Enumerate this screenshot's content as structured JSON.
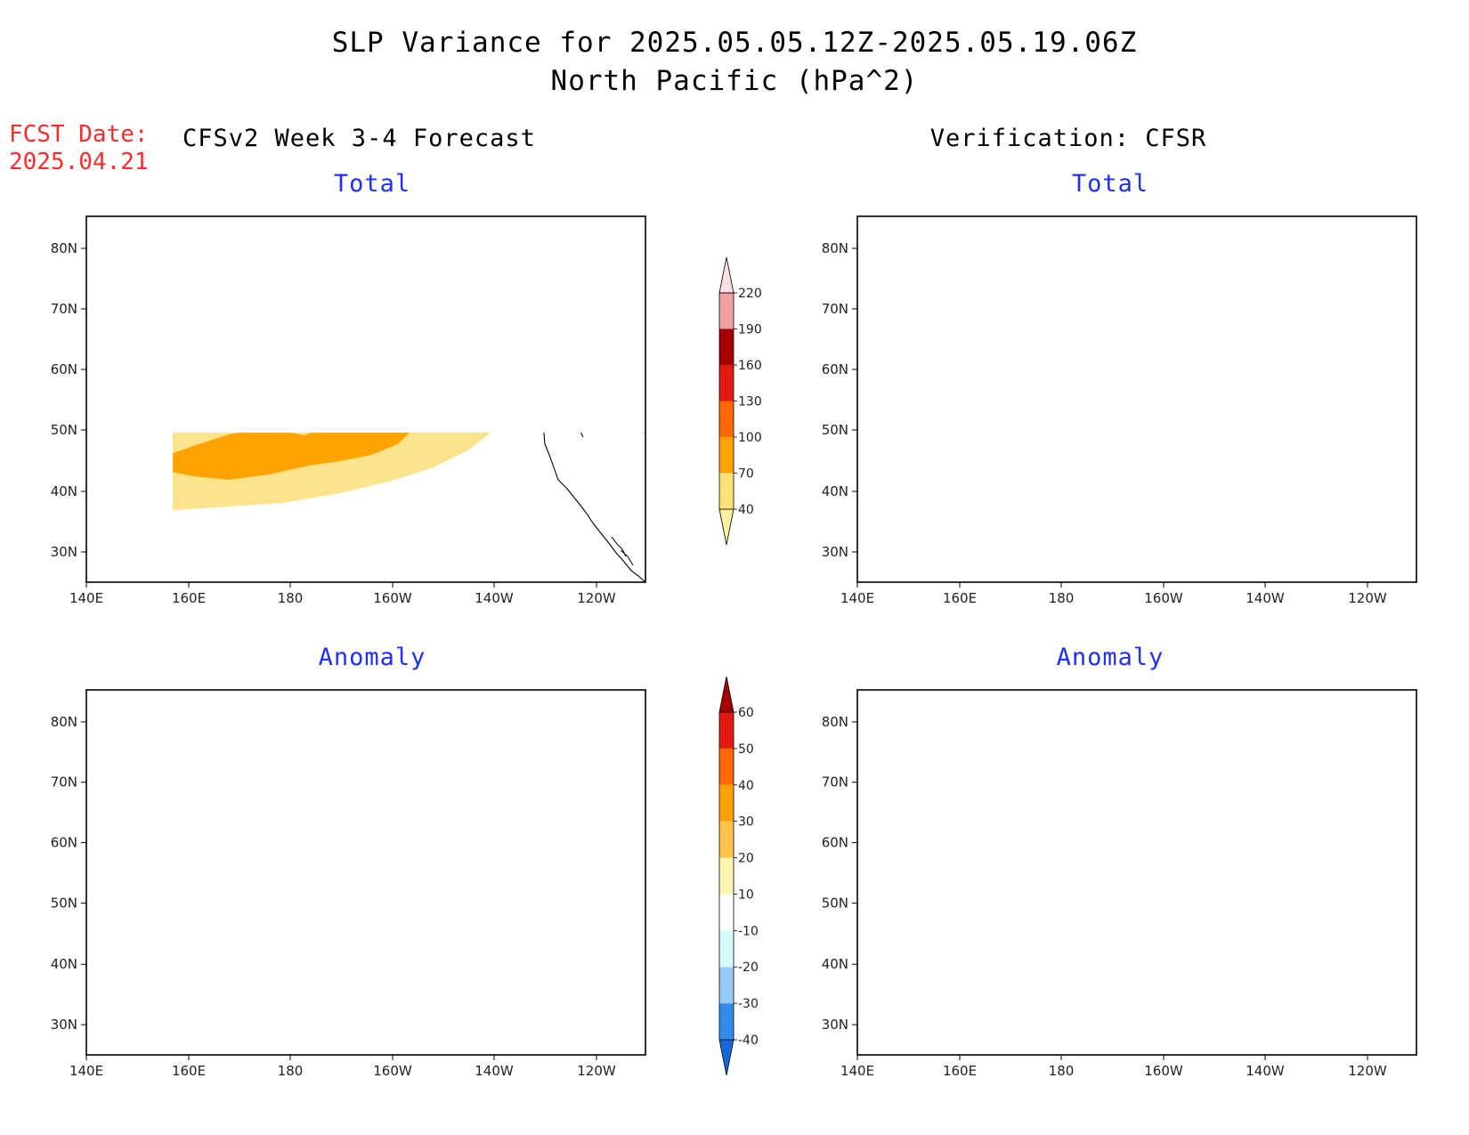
{
  "title": {
    "line1": "SLP Variance for 2025.05.05.12Z-2025.05.19.06Z",
    "line2": "North Pacific (hPa^2)"
  },
  "forecast_date": {
    "label": "FCST Date:",
    "value": "2025.04.21"
  },
  "headers": {
    "left": "CFSv2 Week 3-4 Forecast",
    "right": "Verification: CFSR"
  },
  "panels": {
    "top_left": {
      "subtitle": "Total"
    },
    "top_right": {
      "subtitle": "Total"
    },
    "bottom_left": {
      "subtitle": "Anomaly"
    },
    "bottom_right": {
      "subtitle": "Anomaly"
    }
  },
  "axes": {
    "lat_labels": [
      "80N",
      "70N",
      "60N",
      "50N",
      "40N",
      "30N"
    ],
    "lon_labels": [
      "140E",
      "160E",
      "180",
      "160W",
      "140W",
      "120W"
    ]
  },
  "colorbar_total": {
    "levels": [
      "40",
      "70",
      "100",
      "130",
      "160",
      "190",
      "220"
    ],
    "colors": [
      "#fff0a0",
      "#fde27a",
      "#ffa300",
      "#ff6a00",
      "#e31a10",
      "#a50000",
      "#f2a0a0",
      "#fbe0e0"
    ]
  },
  "colorbar_anomaly": {
    "levels": [
      "-40",
      "-30",
      "-20",
      "-10",
      "10",
      "20",
      "30",
      "40",
      "50",
      "60"
    ],
    "colors": [
      "#1667d8",
      "#2f8ce8",
      "#96caf8",
      "#d8fbfd",
      "#ffffff",
      "#fff5b0",
      "#ffc24a",
      "#ffa200",
      "#ff6a00",
      "#e31a10",
      "#a50000"
    ]
  }
}
